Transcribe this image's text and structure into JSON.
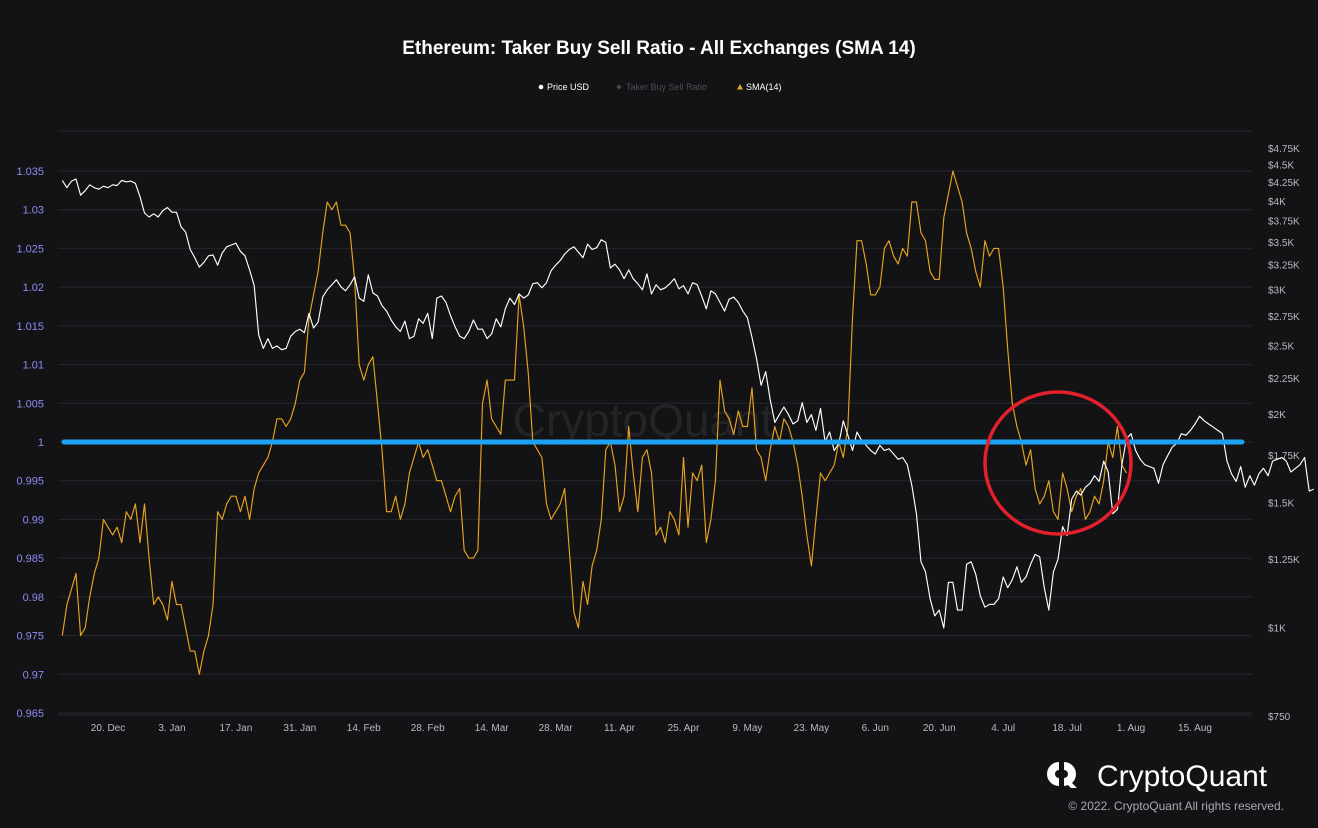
{
  "chart_data": {
    "type": "line",
    "title": "Ethereum: Taker Buy Sell Ratio - All Exchanges (SMA 14)",
    "legend": [
      {
        "label": "Price USD",
        "marker": "circle",
        "color": "#ffffff"
      },
      {
        "label": "Taker Buy Sell Ratio",
        "marker": "diamond",
        "color": "#4c4c52"
      },
      {
        "label": "SMA(14)",
        "marker": "triangle",
        "color": "#e8a41c"
      }
    ],
    "legend_position": "top-center",
    "grid": true,
    "x_ticks": [
      "20. Dec",
      "3. Jan",
      "17. Jan",
      "31. Jan",
      "14. Feb",
      "28. Feb",
      "14. Mar",
      "28. Mar",
      "11. Apr",
      "25. Apr",
      "9. May",
      "23. May",
      "6. Jun",
      "20. Jun",
      "4. Jul",
      "18. Jul",
      "1. Aug",
      "15. Aug"
    ],
    "left_axis": {
      "ticks": [
        "1.035",
        "1.03",
        "1.025",
        "1.02",
        "1.015",
        "1.01",
        "1.005",
        "1",
        "0.995",
        "0.99",
        "0.985",
        "0.98",
        "0.975",
        "0.97",
        "0.965"
      ],
      "range": [
        0.965,
        1.035
      ]
    },
    "right_axis": {
      "scale": "log",
      "ticks": [
        "$4.75K",
        "$4.5K",
        "$4.25K",
        "$4K",
        "$3.75K",
        "$3.5K",
        "$3.25K",
        "$3K",
        "$2.75K",
        "$2.5K",
        "$2.25K",
        "$2K",
        "$1.75K",
        "$1.5K",
        "$1.25K",
        "$1K",
        "$750"
      ],
      "tick_values": [
        4750,
        4500,
        4250,
        4000,
        3750,
        3500,
        3250,
        3000,
        2750,
        2500,
        2250,
        2000,
        1750,
        1500,
        1250,
        1000,
        750
      ],
      "range": [
        750,
        4750
      ]
    },
    "x_start": "2021-12-10",
    "series": [
      {
        "name": "SMA(14)",
        "axis": "left",
        "color": "#e8a41c",
        "values": [
          0.975,
          0.979,
          0.981,
          0.983,
          0.975,
          0.976,
          0.98,
          0.983,
          0.985,
          0.99,
          0.989,
          0.988,
          0.989,
          0.987,
          0.991,
          0.99,
          0.992,
          0.987,
          0.992,
          0.985,
          0.979,
          0.98,
          0.979,
          0.977,
          0.982,
          0.979,
          0.979,
          0.976,
          0.973,
          0.973,
          0.97,
          0.973,
          0.975,
          0.979,
          0.991,
          0.99,
          0.992,
          0.993,
          0.993,
          0.991,
          0.993,
          0.99,
          0.994,
          0.996,
          0.997,
          0.998,
          1.0,
          1.003,
          1.003,
          1.002,
          1.003,
          1.005,
          1.008,
          1.009,
          1.016,
          1.019,
          1.022,
          1.027,
          1.031,
          1.03,
          1.031,
          1.028,
          1.028,
          1.027,
          1.021,
          1.01,
          1.008,
          1.01,
          1.011,
          1.005,
          0.999,
          0.991,
          0.991,
          0.993,
          0.99,
          0.992,
          0.996,
          0.998,
          1.0,
          0.998,
          0.999,
          0.997,
          0.995,
          0.995,
          0.993,
          0.991,
          0.993,
          0.994,
          0.986,
          0.985,
          0.985,
          0.986,
          1.005,
          1.008,
          1.003,
          1.002,
          1.001,
          1.008,
          1.008,
          1.008,
          1.019,
          1.015,
          1.009,
          1.0,
          0.999,
          0.998,
          0.992,
          0.99,
          0.991,
          0.992,
          0.994,
          0.986,
          0.978,
          0.976,
          0.982,
          0.979,
          0.984,
          0.986,
          0.99,
          0.999,
          1.0,
          0.997,
          0.991,
          0.993,
          1.002,
          0.996,
          0.991,
          0.998,
          0.999,
          0.996,
          0.988,
          0.989,
          0.987,
          0.991,
          0.99,
          0.988,
          0.998,
          0.989,
          0.996,
          0.995,
          0.997,
          0.987,
          0.99,
          0.995,
          1.008,
          1.004,
          1.003,
          1.001,
          1.004,
          1.002,
          1.002,
          1.007,
          0.999,
          0.998,
          0.995,
          0.999,
          1.002,
          1.0,
          1.003,
          1.002,
          1.0,
          0.997,
          0.993,
          0.988,
          0.984,
          0.99,
          0.996,
          0.995,
          0.996,
          0.997,
          1.0,
          0.998,
          1.002,
          1.016,
          1.026,
          1.026,
          1.023,
          1.019,
          1.019,
          1.02,
          1.025,
          1.026,
          1.024,
          1.023,
          1.025,
          1.024,
          1.031,
          1.031,
          1.027,
          1.026,
          1.022,
          1.021,
          1.021,
          1.029,
          1.032,
          1.035,
          1.033,
          1.031,
          1.027,
          1.025,
          1.022,
          1.02,
          1.026,
          1.024,
          1.025,
          1.025,
          1.02,
          1.012,
          1.005,
          1.002,
          1.0,
          0.997,
          0.999,
          0.994,
          0.992,
          0.993,
          0.995,
          0.991,
          0.99,
          0.996,
          0.994,
          0.991,
          0.993,
          0.994,
          0.99,
          0.991,
          0.993,
          0.992,
          0.995,
          1.0,
          0.998,
          1.002,
          0.997,
          0.996
        ]
      },
      {
        "name": "Price USD",
        "axis": "right",
        "color": "#ffffff",
        "values": [
          4280,
          4180,
          4270,
          4300,
          4080,
          4140,
          4220,
          4180,
          4160,
          4200,
          4180,
          4220,
          4210,
          4280,
          4260,
          4270,
          4240,
          4060,
          3850,
          3800,
          3840,
          3800,
          3880,
          3920,
          3860,
          3860,
          3680,
          3620,
          3420,
          3330,
          3230,
          3280,
          3350,
          3360,
          3250,
          3380,
          3450,
          3470,
          3490,
          3400,
          3350,
          3200,
          3040,
          2590,
          2480,
          2560,
          2480,
          2500,
          2470,
          2480,
          2580,
          2620,
          2640,
          2610,
          2780,
          2650,
          2700,
          2930,
          3000,
          3050,
          3100,
          3030,
          2990,
          3050,
          3130,
          2920,
          2890,
          3150,
          2970,
          2940,
          2850,
          2800,
          2720,
          2660,
          2620,
          2710,
          2560,
          2580,
          2730,
          2690,
          2780,
          2560,
          2920,
          2940,
          2880,
          2760,
          2660,
          2580,
          2560,
          2620,
          2720,
          2640,
          2640,
          2560,
          2600,
          2730,
          2660,
          2820,
          2920,
          2860,
          2960,
          2920,
          2950,
          3060,
          3070,
          3020,
          3070,
          3190,
          3250,
          3300,
          3370,
          3420,
          3450,
          3390,
          3330,
          3480,
          3420,
          3440,
          3530,
          3500,
          3220,
          3260,
          3200,
          3110,
          3200,
          3110,
          3060,
          3000,
          3160,
          2960,
          3050,
          3000,
          3020,
          3060,
          3110,
          3010,
          3040,
          2960,
          3070,
          3050,
          2940,
          2820,
          2990,
          2960,
          2880,
          2800,
          2910,
          2930,
          2880,
          2800,
          2740,
          2570,
          2400,
          2200,
          2300,
          2100,
          1950,
          2000,
          2050,
          2000,
          1940,
          1960,
          2080,
          1950,
          2000,
          1900,
          2040,
          1830,
          1890,
          1780,
          1820,
          1960,
          1870,
          1780,
          1890,
          1840,
          1810,
          1780,
          1760,
          1810,
          1780,
          1790,
          1760,
          1730,
          1740,
          1700,
          1590,
          1450,
          1240,
          1200,
          1100,
          1040,
          1060,
          1000,
          1160,
          1160,
          1060,
          1060,
          1230,
          1240,
          1190,
          1110,
          1070,
          1080,
          1080,
          1100,
          1180,
          1140,
          1170,
          1220,
          1160,
          1180,
          1230,
          1270,
          1260,
          1140,
          1060,
          1200,
          1250,
          1390,
          1350,
          1520,
          1560,
          1540,
          1580,
          1600,
          1640,
          1610,
          1720,
          1660,
          1450,
          1470,
          1700,
          1850,
          1880,
          1780,
          1730,
          1700,
          1690,
          1680,
          1600,
          1700,
          1750,
          1800,
          1820,
          1880,
          1870,
          1900,
          1940,
          1990,
          1960,
          1940,
          1920,
          1900,
          1880,
          1720,
          1650,
          1610,
          1690,
          1580,
          1640,
          1590,
          1650,
          1680,
          1640,
          1720,
          1730,
          1740,
          1720,
          1660,
          1680,
          1700,
          1740,
          1560,
          1570
        ]
      }
    ],
    "annotations": {
      "horizontal_line": {
        "value": 1.0,
        "axis": "left",
        "color": "#1da1f2"
      },
      "circle": {
        "color": "#e3202b",
        "label": ""
      }
    }
  },
  "watermark": "CryptoQuant",
  "brand": {
    "name": "CryptoQuant",
    "copyright": "© 2022. CryptoQuant All rights reserved."
  }
}
